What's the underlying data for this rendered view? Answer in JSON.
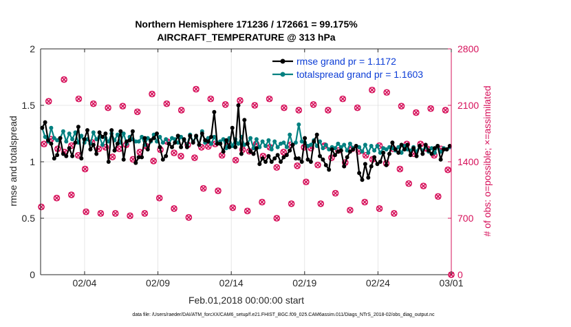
{
  "chart_data": {
    "type": "line",
    "title_line1": "Northern Hemisphere 171236 / 172661 = 99.175%",
    "title_line2": "AIRCRAFT_TEMPERATURE @ 313 hPa",
    "xlabel": "Feb.01,2018 00:00:00 start",
    "ylabel_left": "rmse and totalspread",
    "ylabel_right": "# of obs: o=possible; ×=assimilated",
    "footer": "data file: /Users/raeder/DAI/ATM_forcXX/CAM6_setup/f.e21.FHIST_BGC.f09_025.CAM6assim.011/Diags_NTrS_2018-02/obs_diag_output.nc",
    "x_range": [
      1,
      29
    ],
    "x_ticks": [
      {
        "value": 4,
        "label": "02/04"
      },
      {
        "value": 9,
        "label": "02/09"
      },
      {
        "value": 14,
        "label": "02/14"
      },
      {
        "value": 19,
        "label": "02/19"
      },
      {
        "value": 24,
        "label": "02/24"
      },
      {
        "value": 29,
        "label": "03/01"
      }
    ],
    "ylim_left": [
      0,
      2
    ],
    "y_ticks_left": [
      {
        "value": 0,
        "label": "0"
      },
      {
        "value": 0.5,
        "label": "0.5"
      },
      {
        "value": 1,
        "label": "1"
      },
      {
        "value": 1.5,
        "label": "1.5"
      },
      {
        "value": 2,
        "label": "2"
      }
    ],
    "ylim_right": [
      0,
      2800
    ],
    "y_ticks_right": [
      {
        "value": 0,
        "label": "0"
      },
      {
        "value": 700,
        "label": "700"
      },
      {
        "value": 1400,
        "label": "1400"
      },
      {
        "value": 2100,
        "label": "2100"
      },
      {
        "value": 2800,
        "label": "2800"
      }
    ],
    "grid": true,
    "legend_position": "top-right",
    "colors": {
      "rmse": "#000000",
      "spread": "#008080",
      "obs": "#d6105a",
      "axis": "#262626",
      "grid": "#dfdfdf",
      "legend_text": "#0b3cd6"
    },
    "series": [
      {
        "name": "rmse grand pr = 1.1172",
        "key": "rmse",
        "values": [
          1.3,
          1.35,
          1.19,
          1.16,
          1.03,
          1.06,
          1.21,
          1.07,
          1.05,
          1.12,
          1.05,
          1.17,
          1.31,
          1.03,
          1.2,
          1.28,
          1.11,
          1.15,
          1.07,
          1.26,
          1.22,
          1.25,
          1.0,
          1.28,
          1.1,
          1.16,
          1.27,
          1.02,
          1.18,
          1.19,
          1.27,
          0.99,
          1.04,
          1.04,
          1.21,
          1.11,
          1.19,
          1.21,
          1.25,
          1.13,
          1.02,
          1.05,
          1.16,
          1.13,
          1.17,
          1.23,
          1.13,
          1.2,
          1.13,
          1.23,
          1.17,
          1.23,
          1.15,
          1.25,
          1.19,
          1.18,
          1.22,
          1.44,
          1.16,
          1.16,
          1.09,
          1.19,
          1.13,
          1.3,
          1.13,
          1.5,
          1.07,
          1.37,
          1.16,
          1.09,
          1.07,
          1.12,
          0.98,
          1.03,
          1.0,
          1.05,
          1.0,
          1.03,
          1.06,
          1.0,
          1.04,
          1.06,
          1.1,
          1.15,
          1.03,
          1.03,
          1.0,
          1.21,
          1.02,
          1.0,
          1.18,
          1.24,
          1.05,
          1.02,
          0.97,
          0.93,
          1.11,
          1.06,
          1.09,
          1.1,
          0.96,
          1.04,
          1.09,
          1.11,
          1.14,
          0.9,
          0.84,
          0.98,
          0.86,
          0.96,
          1.04,
          0.98,
          1.0,
          1.08,
          0.97,
          1.07,
          1.17,
          1.11,
          1.08,
          1.15,
          1.11,
          1.15,
          1.06,
          1.12,
          1.05,
          1.14,
          1.07,
          1.15,
          1.1,
          1.07,
          1.12,
          1.14,
          1.02,
          1.11,
          1.11,
          1.14
        ]
      },
      {
        "name": "totalspread grand pr = 1.1603",
        "key": "spread",
        "values": [
          1.3,
          1.22,
          1.18,
          1.3,
          1.21,
          1.19,
          1.21,
          1.27,
          1.18,
          1.25,
          1.2,
          1.26,
          1.17,
          1.23,
          1.17,
          1.2,
          1.16,
          1.26,
          1.2,
          1.22,
          1.15,
          1.21,
          1.18,
          1.25,
          1.19,
          1.24,
          1.17,
          1.25,
          1.16,
          1.22,
          1.2,
          1.18,
          1.18,
          1.22,
          1.15,
          1.21,
          1.18,
          1.24,
          1.18,
          1.22,
          1.17,
          1.2,
          1.16,
          1.21,
          1.2,
          1.17,
          1.22,
          1.19,
          1.15,
          1.24,
          1.18,
          1.22,
          1.15,
          1.27,
          1.17,
          1.21,
          1.16,
          1.22,
          1.17,
          1.18,
          1.2,
          1.12,
          1.21,
          1.14,
          1.2,
          1.16,
          1.22,
          1.15,
          1.16,
          1.21,
          1.12,
          1.2,
          1.13,
          1.18,
          1.14,
          1.19,
          1.11,
          1.18,
          1.13,
          1.16,
          1.17,
          1.13,
          1.24,
          1.15,
          1.17,
          1.33,
          1.18,
          1.17,
          1.14,
          1.15,
          1.19,
          1.14,
          1.18,
          1.12,
          1.15,
          1.11,
          1.13,
          1.12,
          1.16,
          1.13,
          1.15,
          1.1,
          1.16,
          1.12,
          1.14,
          1.13,
          1.09,
          1.15,
          1.08,
          1.14,
          1.1,
          1.14,
          1.08,
          1.12,
          1.11,
          1.13,
          1.12,
          1.1,
          1.13,
          1.08,
          1.14,
          1.11,
          1.1,
          1.13,
          1.09,
          1.14,
          1.1,
          1.13,
          1.09,
          1.12,
          1.08,
          1.14,
          1.09,
          1.12,
          1.11,
          1.13
        ]
      },
      {
        "name": "# of obs",
        "key": "obs",
        "points": [
          [
            1.05,
            840
          ],
          [
            1.55,
            2150
          ],
          [
            2.1,
            950
          ],
          [
            2.6,
            2420
          ],
          [
            3.1,
            990
          ],
          [
            3.6,
            2180
          ],
          [
            4.1,
            780
          ],
          [
            4.6,
            2120
          ],
          [
            5.1,
            760
          ],
          [
            5.6,
            2070
          ],
          [
            6.1,
            760
          ],
          [
            6.6,
            2090
          ],
          [
            7.1,
            730
          ],
          [
            7.6,
            2020
          ],
          [
            8.1,
            760
          ],
          [
            8.6,
            2240
          ],
          [
            9.1,
            950
          ],
          [
            9.6,
            2120
          ],
          [
            10.1,
            820
          ],
          [
            10.6,
            2040
          ],
          [
            11.1,
            710
          ],
          [
            11.6,
            2300
          ],
          [
            12.1,
            1070
          ],
          [
            12.6,
            2180
          ],
          [
            13.1,
            1040
          ],
          [
            13.6,
            2110
          ],
          [
            14.1,
            830
          ],
          [
            14.6,
            2160
          ],
          [
            15.1,
            790
          ],
          [
            15.6,
            2100
          ],
          [
            16.1,
            900
          ],
          [
            16.6,
            2180
          ],
          [
            17.1,
            700
          ],
          [
            17.6,
            2070
          ],
          [
            18.1,
            880
          ],
          [
            18.6,
            2040
          ],
          [
            19.1,
            1150
          ],
          [
            19.6,
            2110
          ],
          [
            20.1,
            880
          ],
          [
            20.6,
            2040
          ],
          [
            21.1,
            1010
          ],
          [
            21.6,
            2180
          ],
          [
            22.1,
            800
          ],
          [
            22.6,
            2070
          ],
          [
            23.1,
            900
          ],
          [
            23.6,
            2290
          ],
          [
            24.1,
            820
          ],
          [
            24.6,
            2260
          ],
          [
            25.1,
            760
          ],
          [
            25.6,
            2090
          ],
          [
            26.1,
            1130
          ],
          [
            26.6,
            2010
          ],
          [
            27.1,
            1100
          ],
          [
            27.6,
            2060
          ],
          [
            28.1,
            970
          ],
          [
            28.6,
            2040
          ],
          [
            29.0,
            0
          ]
        ]
      }
    ],
    "obs_inline_fraction": 0.5,
    "obs_inline": [
      1620,
      1680,
      1560,
      1520,
      1600,
      1480,
      1310,
      1640,
      1560,
      1580,
      1460,
      1560,
      1610,
      1430,
      1520,
      1590,
      1410,
      1550,
      1650,
      1510,
      1470,
      1610,
      1450,
      1580,
      1590,
      1620,
      1480,
      1620,
      1420,
      1550,
      1530,
      1620,
      1470,
      1580,
      1330,
      1520,
      1610,
      1350,
      1580,
      1570,
      1360,
      1600,
      1450,
      1540,
      1390,
      1560,
      1530,
      1480,
      1430,
      1600,
      1380,
      1560,
      1310,
      1620,
      1500,
      1620,
      1560,
      1480,
      1560,
      1300
    ]
  }
}
